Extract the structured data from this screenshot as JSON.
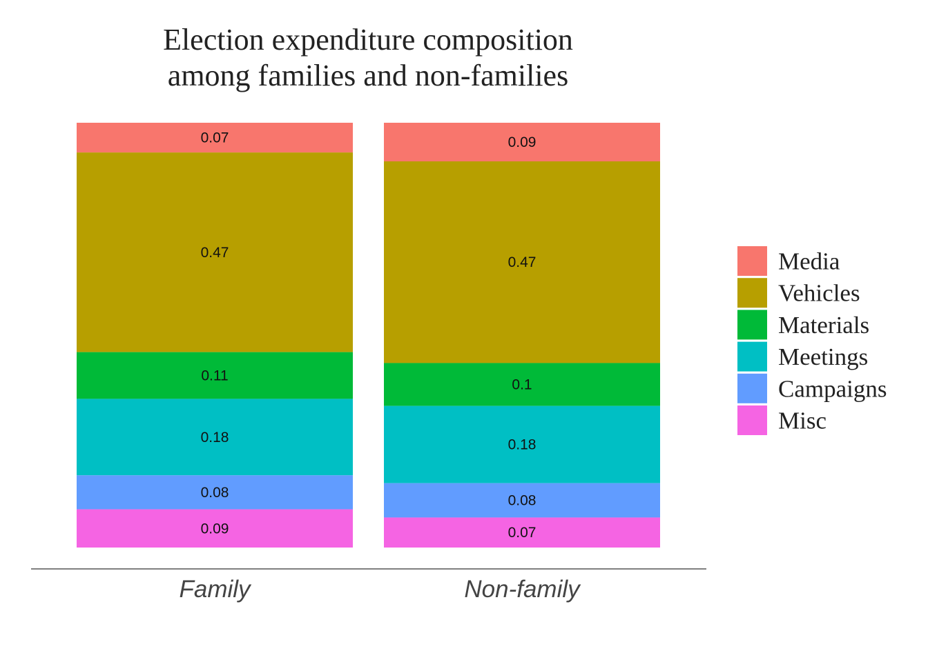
{
  "chart_data": {
    "type": "bar",
    "stacked": true,
    "title": [
      "Election expenditure composition",
      "among families and non-families"
    ],
    "xlabel": "",
    "ylabel": "",
    "grid": false,
    "legend_position": "right",
    "categories": [
      "Family",
      "Non-family"
    ],
    "series": [
      {
        "name": "Media",
        "color": "#F8766D",
        "values": [
          0.07,
          0.09
        ],
        "labels": [
          "0.07",
          "0.09"
        ]
      },
      {
        "name": "Vehicles",
        "color": "#B79F00",
        "values": [
          0.47,
          0.47
        ],
        "labels": [
          "0.47",
          "0.47"
        ]
      },
      {
        "name": "Materials",
        "color": "#00BA38",
        "values": [
          0.11,
          0.1
        ],
        "labels": [
          "0.11",
          "0.1"
        ]
      },
      {
        "name": "Meetings",
        "color": "#00BFC4",
        "values": [
          0.18,
          0.18
        ],
        "labels": [
          "0.18",
          "0.18"
        ]
      },
      {
        "name": "Campaigns",
        "color": "#619CFF",
        "values": [
          0.08,
          0.08
        ],
        "labels": [
          "0.08",
          "0.08"
        ]
      },
      {
        "name": "Misc",
        "color": "#F564E3",
        "values": [
          0.09,
          0.07
        ],
        "labels": [
          "0.09",
          "0.07"
        ]
      }
    ]
  }
}
